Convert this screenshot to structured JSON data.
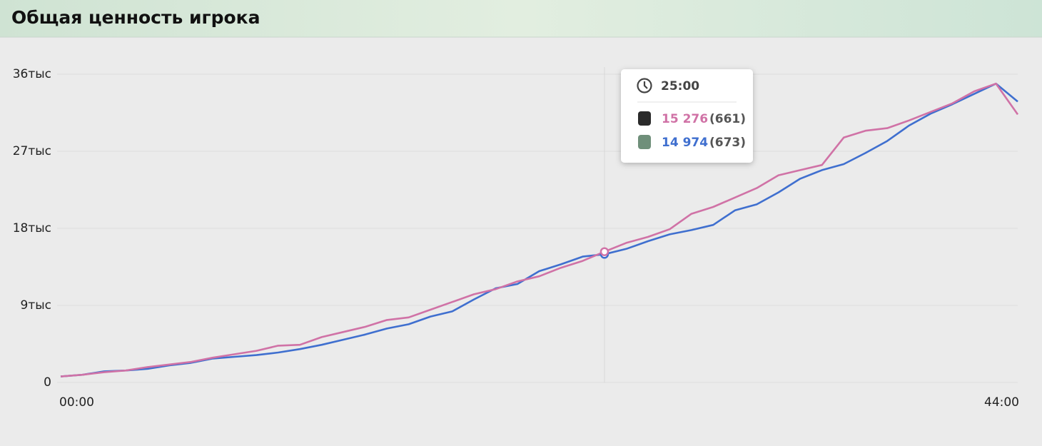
{
  "chart_data": {
    "type": "line",
    "title": "Общая ценность игрока",
    "x": [
      0,
      1,
      2,
      3,
      4,
      5,
      6,
      7,
      8,
      9,
      10,
      11,
      12,
      13,
      14,
      15,
      16,
      17,
      18,
      19,
      20,
      21,
      22,
      23,
      24,
      25,
      26,
      27,
      28,
      29,
      30,
      31,
      32,
      33,
      34,
      35,
      36,
      37,
      38,
      39,
      40,
      41,
      42,
      43,
      44
    ],
    "xlim": [
      0,
      44
    ],
    "xticks": [
      {
        "value": 0,
        "label": "00:00"
      },
      {
        "value": 44,
        "label": "44:00"
      }
    ],
    "ylim": [
      0,
      36000
    ],
    "yticks": [
      {
        "value": 0,
        "label": "0"
      },
      {
        "value": 9000,
        "label": "9тыс"
      },
      {
        "value": 18000,
        "label": "18тыс"
      },
      {
        "value": 27000,
        "label": "27тыс"
      },
      {
        "value": 36000,
        "label": "36тыс"
      }
    ],
    "grid": true,
    "series": [
      {
        "color": "#d072a6",
        "values": [
          700,
          900,
          1200,
          1400,
          1800,
          2100,
          2400,
          2900,
          3300,
          3700,
          4300,
          4400,
          5300,
          5900,
          6500,
          7300,
          7600,
          8500,
          9400,
          10300,
          10900,
          11800,
          12400,
          13400,
          14200,
          15276,
          16300,
          17000,
          17900,
          19700,
          20500,
          21600,
          22700,
          24200,
          24800,
          25400,
          28600,
          29400,
          29700,
          30600,
          31600,
          32600,
          34000,
          34900,
          31300
        ]
      },
      {
        "color": "#3f6fcf",
        "values": [
          700,
          900,
          1300,
          1400,
          1600,
          2000,
          2300,
          2800,
          3000,
          3200,
          3500,
          3900,
          4400,
          5000,
          5600,
          6300,
          6800,
          7700,
          8300,
          9700,
          11000,
          11500,
          13000,
          13800,
          14700,
          14974,
          15600,
          16500,
          17300,
          17800,
          18400,
          20100,
          20800,
          22200,
          23800,
          24800,
          25500,
          26800,
          28200,
          30000,
          31400,
          32500,
          33700,
          34900,
          32800
        ]
      }
    ],
    "tooltip": {
      "x": 25,
      "time": "25:00",
      "items": [
        {
          "value": "15 276",
          "count": "(661)"
        },
        {
          "value": "14 974",
          "count": "(673)"
        }
      ]
    }
  }
}
